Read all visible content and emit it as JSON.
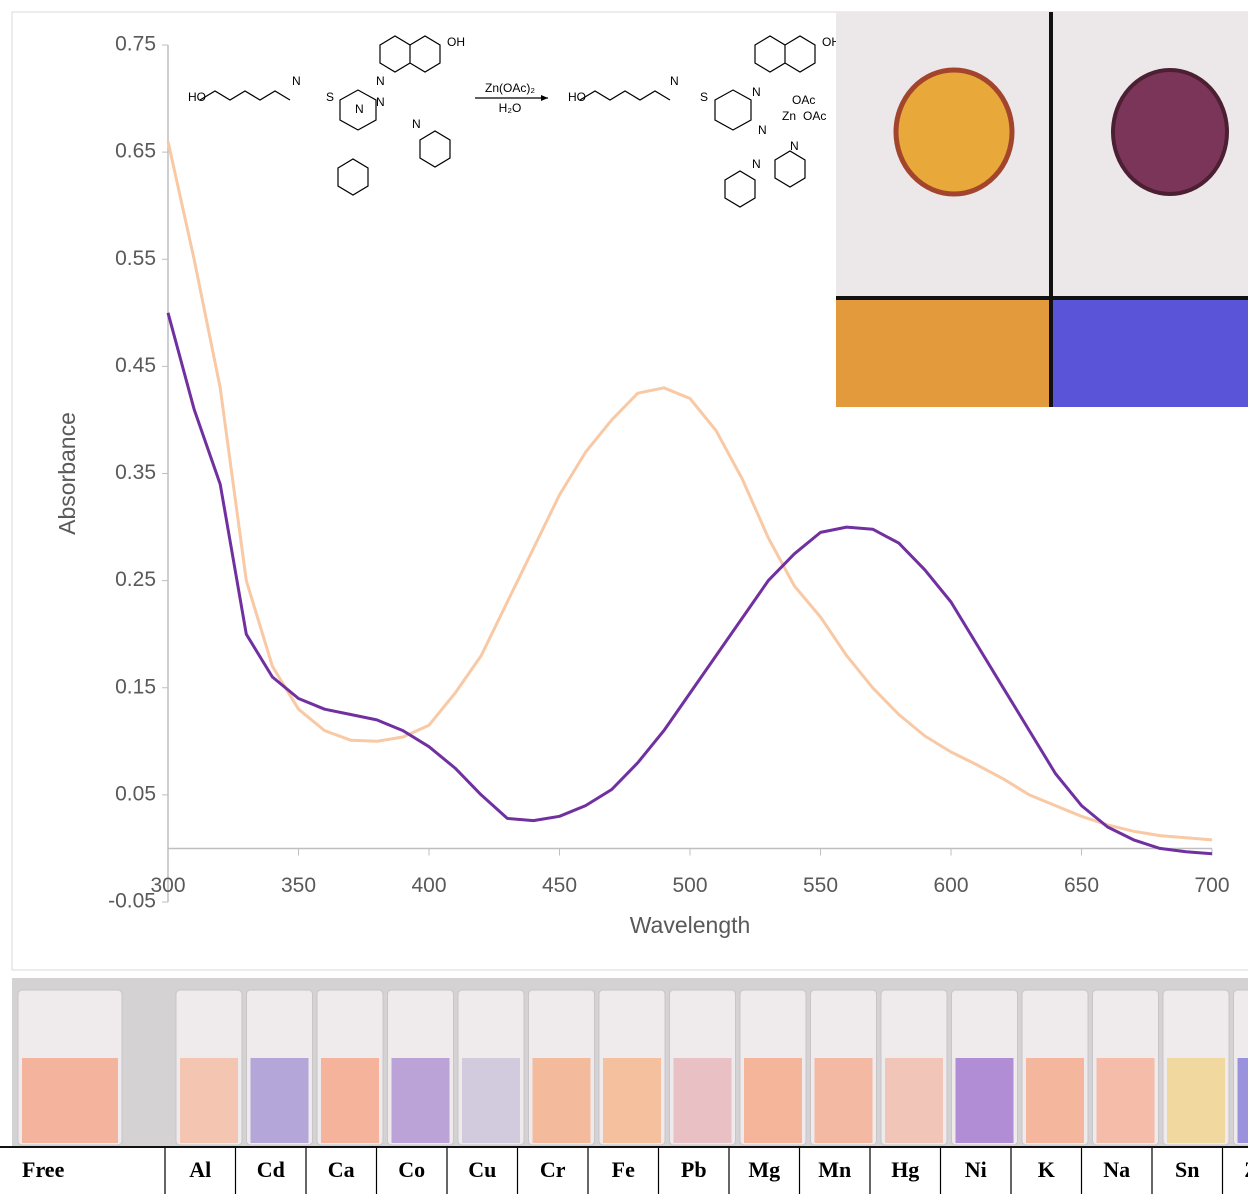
{
  "chart_data": {
    "type": "line",
    "xlabel": "Wavelength",
    "ylabel": "Absorbance",
    "x": [
      300,
      310,
      320,
      330,
      340,
      350,
      360,
      370,
      380,
      390,
      400,
      410,
      420,
      430,
      440,
      450,
      460,
      470,
      480,
      490,
      500,
      510,
      520,
      530,
      540,
      550,
      560,
      570,
      580,
      590,
      600,
      610,
      620,
      630,
      640,
      650,
      660,
      670,
      680,
      690,
      700
    ],
    "series": [
      {
        "color": "#f8c9a4",
        "values": [
          0.66,
          0.55,
          0.43,
          0.25,
          0.17,
          0.13,
          0.11,
          0.101,
          0.1,
          0.104,
          0.115,
          0.145,
          0.18,
          0.23,
          0.28,
          0.33,
          0.37,
          0.4,
          0.425,
          0.43,
          0.42,
          0.39,
          0.345,
          0.29,
          0.245,
          0.216,
          0.18,
          0.15,
          0.125,
          0.105,
          0.09,
          0.078,
          0.065,
          0.05,
          0.04,
          0.03,
          0.022,
          0.016,
          0.012,
          0.01,
          0.008
        ]
      },
      {
        "color": "#7030a0",
        "values": [
          0.5,
          0.41,
          0.34,
          0.2,
          0.16,
          0.14,
          0.13,
          0.125,
          0.12,
          0.11,
          0.095,
          0.075,
          0.05,
          0.028,
          0.026,
          0.03,
          0.04,
          0.055,
          0.08,
          0.11,
          0.145,
          0.18,
          0.215,
          0.25,
          0.275,
          0.295,
          0.3,
          0.298,
          0.285,
          0.26,
          0.23,
          0.19,
          0.15,
          0.11,
          0.07,
          0.04,
          0.02,
          0.008,
          0.0,
          -0.003,
          -0.005
        ]
      }
    ],
    "xlim": [
      300,
      700
    ],
    "ylim": [
      -0.05,
      0.75
    ],
    "xticks": [
      300,
      350,
      400,
      450,
      500,
      550,
      600,
      650,
      700
    ],
    "yticks": [
      -0.05,
      0.05,
      0.15,
      0.25,
      0.35,
      0.45,
      0.55,
      0.65,
      0.75
    ]
  },
  "scheme": {
    "reagent": "Zn(OAc)₂",
    "solvent": "H₂O",
    "left_labels": [
      "OH",
      "HO",
      "N",
      "S",
      "N",
      "N",
      "N",
      "N"
    ],
    "right_labels": [
      "OH",
      "HO",
      "N",
      "S",
      "N",
      "OAc",
      "Zn",
      "OAc",
      "N",
      "N",
      "N"
    ]
  },
  "cuvette_labels": [
    "Free",
    "Al",
    "Cd",
    "Ca",
    "Co",
    "Cu",
    "Cr",
    "Fe",
    "Pb",
    "Mg",
    "Mn",
    "Hg",
    "Ni",
    "K",
    "Na",
    "Sn",
    "Zn"
  ]
}
